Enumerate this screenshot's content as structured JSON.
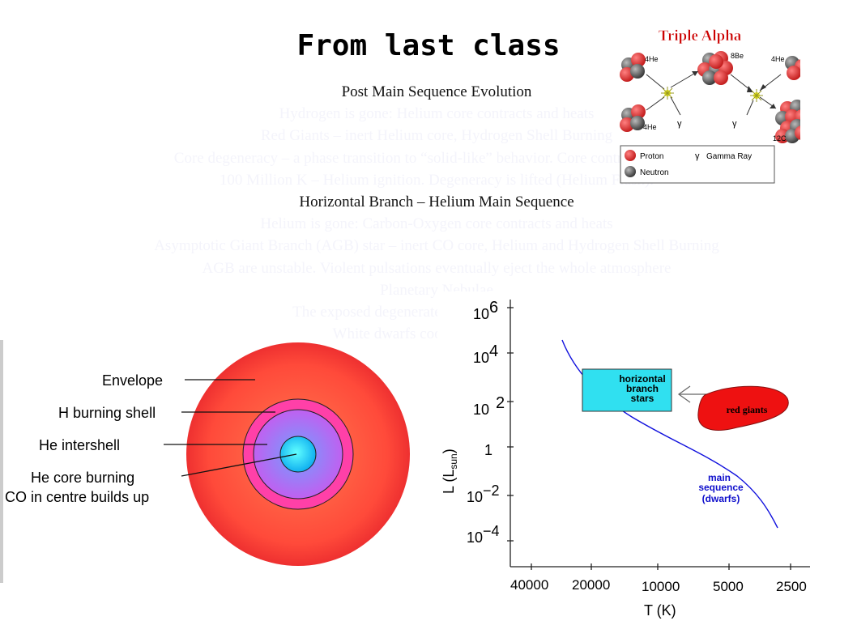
{
  "title": "From last class",
  "lines": [
    {
      "text": "Post Main Sequence Evolution",
      "dark": true
    },
    {
      "text": "Hydrogen is gone: Helium core contracts and heats",
      "dark": false
    },
    {
      "text": "Red Giants –  inert Helium core, Hydrogen Shell Burning",
      "dark": false
    },
    {
      "text": "Core degeneracy – a phase transition to “solid-like” behavior. Core contraction stops.",
      "dark": false
    },
    {
      "text": "100 Million K – Helium ignition. Degeneracy is lifted (Helium Flash).",
      "dark": false
    },
    {
      "text": "Horizontal Branch – Helium Main Sequence",
      "dark": true
    },
    {
      "text": "Helium is gone: Carbon-Oxygen core contracts and heats",
      "dark": false
    },
    {
      "text": "Asymptotic Giant Branch (AGB) star – inert CO core, Helium and Hydrogen Shell Burning",
      "dark": false
    },
    {
      "text": "AGB are unstable. Violent pulsations eventually eject the whole atmosphere",
      "dark": false
    },
    {
      "text": "Planetary Nebulae",
      "dark": false
    },
    {
      "text": "The exposed degenerate core is a White Dwarf",
      "dark": false
    },
    {
      "text": "White dwarfs cool down and fade",
      "dark": false
    }
  ],
  "triple_alpha": {
    "title": "Triple Alpha",
    "he": "4He",
    "be": "8Be",
    "c": "12C",
    "gamma": "γ",
    "legend_proton": "Proton",
    "legend_neutron": "Neutron",
    "legend_gamma": "Gamma Ray",
    "colors": {
      "proton": "#e03030",
      "neutron": "#666666",
      "title": "#cc0000"
    }
  },
  "star_diagram": {
    "labels": [
      "Envelope",
      "H burning shell",
      "He intershell",
      "He core burning",
      "CO in centre builds up"
    ],
    "colors": {
      "envelope": "#ff5a3a",
      "shell": "#ff3aa0",
      "intershell": "#a070ff",
      "core": "#30c8ff"
    }
  },
  "hr_diagram": {
    "y_label": "L (L",
    "y_label_sub": "sun",
    "y_label_end": ")",
    "x_label": "T (K)",
    "y_ticks": [
      {
        "base": "10",
        "exp": "6"
      },
      {
        "base": "10",
        "exp": "4"
      },
      {
        "base": "10",
        "exp": "2"
      },
      {
        "base": "1",
        "exp": ""
      },
      {
        "base": "10",
        "exp": "−2"
      },
      {
        "base": "10",
        "exp": "−4"
      }
    ],
    "x_ticks": [
      "40000",
      "20000",
      "10000",
      "5000",
      "2500"
    ],
    "horizontal_branch": "horizontal branch stars",
    "hb_line1": "horizontal",
    "hb_line2": "branch",
    "hb_line3": "stars",
    "red_giants": "red giants",
    "ms_line1": "main",
    "ms_line2": "sequence",
    "ms_line3": "(dwarfs)",
    "colors": {
      "hb_box": "#30e0f0",
      "red_giants": "#ee1111",
      "main_sequence": "#1010dd",
      "ms_label": "#1010cc"
    }
  }
}
